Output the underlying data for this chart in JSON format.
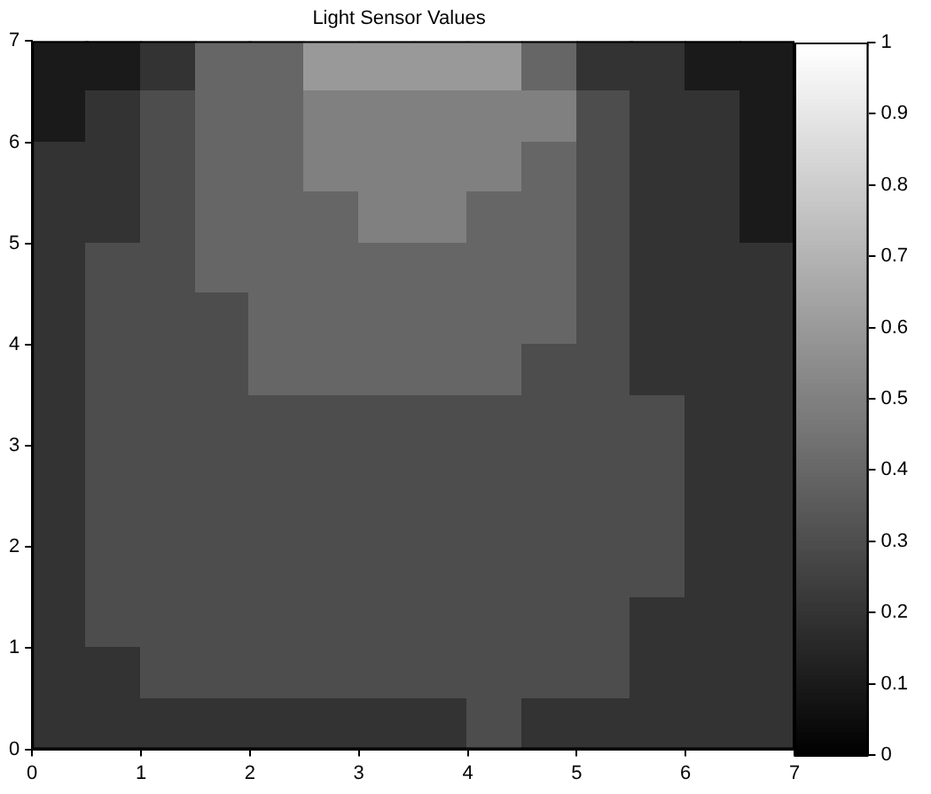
{
  "chart_data": {
    "type": "heatmap",
    "title": "Light Sensor Values",
    "cells": [
      [
        0.1,
        0.1,
        0.2,
        0.4,
        0.4,
        0.6,
        0.6,
        0.6,
        0.6,
        0.4,
        0.2,
        0.2,
        0.1,
        0.1
      ],
      [
        0.1,
        0.2,
        0.3,
        0.4,
        0.4,
        0.5,
        0.5,
        0.5,
        0.5,
        0.5,
        0.3,
        0.2,
        0.2,
        0.1
      ],
      [
        0.2,
        0.2,
        0.3,
        0.4,
        0.4,
        0.5,
        0.5,
        0.5,
        0.5,
        0.4,
        0.3,
        0.2,
        0.2,
        0.1
      ],
      [
        0.2,
        0.2,
        0.3,
        0.4,
        0.4,
        0.4,
        0.5,
        0.5,
        0.4,
        0.4,
        0.3,
        0.2,
        0.2,
        0.1
      ],
      [
        0.2,
        0.3,
        0.3,
        0.4,
        0.4,
        0.4,
        0.4,
        0.4,
        0.4,
        0.4,
        0.3,
        0.2,
        0.2,
        0.2
      ],
      [
        0.2,
        0.3,
        0.3,
        0.3,
        0.4,
        0.4,
        0.4,
        0.4,
        0.4,
        0.4,
        0.3,
        0.2,
        0.2,
        0.2
      ],
      [
        0.2,
        0.3,
        0.3,
        0.3,
        0.4,
        0.4,
        0.4,
        0.4,
        0.4,
        0.3,
        0.3,
        0.2,
        0.2,
        0.2
      ],
      [
        0.2,
        0.3,
        0.3,
        0.3,
        0.3,
        0.3,
        0.3,
        0.3,
        0.3,
        0.3,
        0.3,
        0.3,
        0.2,
        0.2
      ],
      [
        0.2,
        0.3,
        0.3,
        0.3,
        0.3,
        0.3,
        0.3,
        0.3,
        0.3,
        0.3,
        0.3,
        0.3,
        0.2,
        0.2
      ],
      [
        0.2,
        0.3,
        0.3,
        0.3,
        0.3,
        0.3,
        0.3,
        0.3,
        0.3,
        0.3,
        0.3,
        0.3,
        0.2,
        0.2
      ],
      [
        0.2,
        0.3,
        0.3,
        0.3,
        0.3,
        0.3,
        0.3,
        0.3,
        0.3,
        0.3,
        0.3,
        0.3,
        0.2,
        0.2
      ],
      [
        0.2,
        0.3,
        0.3,
        0.3,
        0.3,
        0.3,
        0.3,
        0.3,
        0.3,
        0.3,
        0.3,
        0.2,
        0.2,
        0.2
      ],
      [
        0.2,
        0.2,
        0.3,
        0.3,
        0.3,
        0.3,
        0.3,
        0.3,
        0.3,
        0.3,
        0.3,
        0.2,
        0.2,
        0.2
      ],
      [
        0.2,
        0.2,
        0.2,
        0.2,
        0.2,
        0.2,
        0.2,
        0.2,
        0.3,
        0.2,
        0.2,
        0.2,
        0.2,
        0.2
      ]
    ],
    "xlim": [
      0,
      7
    ],
    "ylim": [
      0,
      7
    ],
    "xticks": [
      0,
      1,
      2,
      3,
      4,
      5,
      6,
      7
    ],
    "yticks": [
      0,
      1,
      2,
      3,
      4,
      5,
      6,
      7
    ],
    "clim": [
      0,
      1
    ],
    "cticks": [
      0,
      0.1,
      0.2,
      0.3,
      0.4,
      0.5,
      0.6,
      0.7,
      0.8,
      0.9,
      1
    ]
  }
}
